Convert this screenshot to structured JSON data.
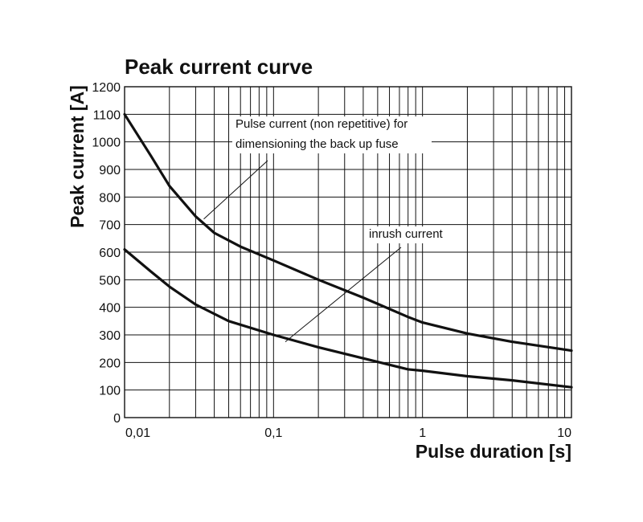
{
  "chart_data": {
    "type": "line",
    "title": "Peak current curve",
    "xlabel": "Pulse duration [s]",
    "ylabel": "Peak current [A]",
    "xscale": "log",
    "xlim": [
      0.01,
      10
    ],
    "ylim": [
      0,
      1200
    ],
    "grid": true,
    "x_ticks": [
      {
        "value": 0.01,
        "label": "0,01"
      },
      {
        "value": 0.1,
        "label": "0,1"
      },
      {
        "value": 1,
        "label": "1"
      },
      {
        "value": 10,
        "label": "10"
      }
    ],
    "y_ticks": [
      {
        "value": 0,
        "label": "0"
      },
      {
        "value": 100,
        "label": "100"
      },
      {
        "value": 200,
        "label": "200"
      },
      {
        "value": 300,
        "label": "300"
      },
      {
        "value": 400,
        "label": "400"
      },
      {
        "value": 500,
        "label": "500"
      },
      {
        "value": 600,
        "label": "600"
      },
      {
        "value": 700,
        "label": "700"
      },
      {
        "value": 800,
        "label": "800"
      },
      {
        "value": 900,
        "label": "900"
      },
      {
        "value": 1000,
        "label": "1000"
      },
      {
        "value": 1100,
        "label": "1100"
      },
      {
        "value": 1200,
        "label": "1200"
      }
    ],
    "series": [
      {
        "name": "Pulse current (non repetitive) for dimensioning the back up fuse",
        "x": [
          0.01,
          0.015,
          0.02,
          0.03,
          0.04,
          0.06,
          0.1,
          0.2,
          0.4,
          0.8,
          1,
          2,
          4,
          10
        ],
        "y": [
          1100,
          950,
          840,
          730,
          670,
          620,
          570,
          500,
          435,
          365,
          345,
          305,
          275,
          243
        ]
      },
      {
        "name": "inrush current",
        "x": [
          0.01,
          0.015,
          0.02,
          0.03,
          0.05,
          0.1,
          0.2,
          0.4,
          0.8,
          1,
          2,
          4,
          10
        ],
        "y": [
          610,
          530,
          475,
          410,
          350,
          300,
          255,
          215,
          175,
          170,
          150,
          135,
          110
        ]
      }
    ],
    "annotations": [
      {
        "lines": [
          "Pulse current (non repetitive) for",
          "dimensioning the back up fuse"
        ],
        "series_index": 0,
        "point": {
          "x": 0.034,
          "y": 720
        }
      },
      {
        "lines": [
          "inrush current"
        ],
        "series_index": 1,
        "point": {
          "x": 0.12,
          "y": 275
        }
      }
    ]
  }
}
